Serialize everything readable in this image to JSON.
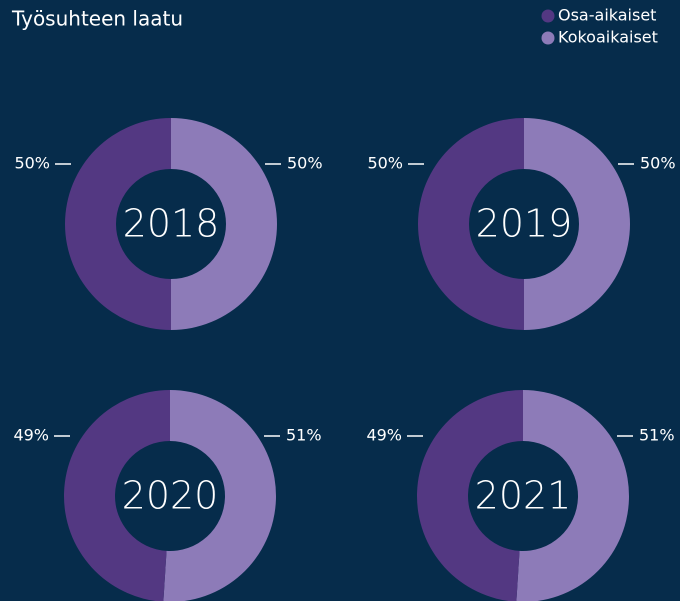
{
  "title": "Työsuhteen laatu",
  "chart_data": [
    {
      "type": "donut",
      "title": "2018",
      "categories": [
        "Osa-aikaiset",
        "Kokoaikaiset"
      ],
      "values": [
        50,
        50
      ],
      "value_labels": [
        "50%",
        "50%"
      ],
      "colors": [
        "#533882",
        "#8d7bb8"
      ]
    },
    {
      "type": "donut",
      "title": "2019",
      "categories": [
        "Osa-aikaiset",
        "Kokoaikaiset"
      ],
      "values": [
        50,
        50
      ],
      "value_labels": [
        "50%",
        "50%"
      ],
      "colors": [
        "#533882",
        "#8d7bb8"
      ]
    },
    {
      "type": "donut",
      "title": "2020",
      "categories": [
        "Osa-aikaiset",
        "Kokoaikaiset"
      ],
      "values": [
        49,
        51
      ],
      "value_labels": [
        "49%",
        "51%"
      ],
      "colors": [
        "#533882",
        "#8d7bb8"
      ]
    },
    {
      "type": "donut",
      "title": "2021",
      "categories": [
        "Osa-aikaiset",
        "Kokoaikaiset"
      ],
      "values": [
        49,
        51
      ],
      "value_labels": [
        "49%",
        "51%"
      ],
      "colors": [
        "#533882",
        "#8d7bb8"
      ]
    }
  ]
}
